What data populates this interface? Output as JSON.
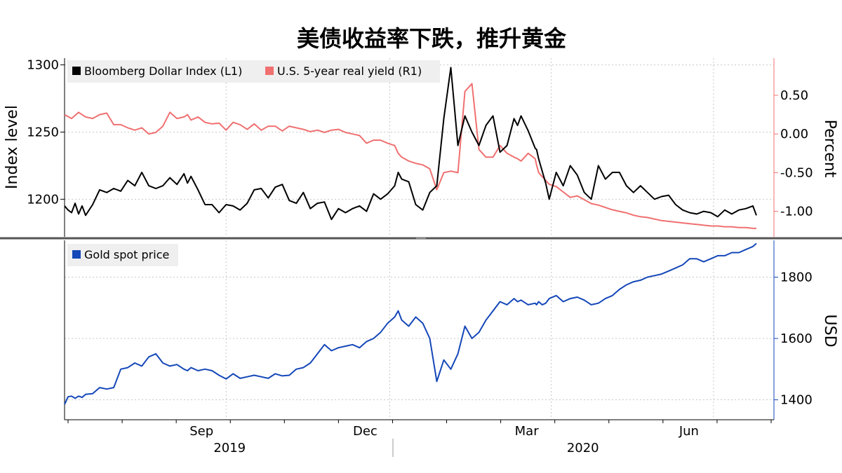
{
  "title": "美债收益率下跌，推升黄金",
  "chart_data": [
    {
      "type": "line",
      "panel": "top",
      "left_axis": {
        "label": "Index level",
        "ticks": [
          1200,
          1250,
          1300
        ],
        "ylim": [
          1172,
          1305
        ]
      },
      "right_axis": {
        "label": "Percent",
        "ticks": [
          0.5,
          0.0,
          -0.5,
          -1.0
        ],
        "tick_labels": [
          "0.50",
          "0.00",
          "-0.50",
          "-1.00"
        ],
        "ylim": [
          -1.33,
          0.98
        ]
      },
      "legend": {
        "placement": "top-left"
      },
      "grid": true,
      "series": [
        {
          "name": "Bloomberg Dollar Index (L1)",
          "axis": "left",
          "color": "#000000",
          "x": [
            0,
            5,
            10,
            15,
            20,
            25,
            30,
            40,
            50,
            60,
            70,
            80,
            90,
            100,
            110,
            120,
            130,
            140,
            150,
            160,
            170,
            175,
            180,
            190,
            200,
            210,
            220,
            230,
            240,
            250,
            260,
            270,
            280,
            290,
            300,
            310,
            320,
            330,
            340,
            350,
            360,
            370,
            380,
            390,
            400,
            410,
            420,
            430,
            440,
            450,
            460,
            470,
            475,
            480,
            490,
            500,
            510,
            520,
            530,
            540,
            550,
            560,
            570,
            580,
            590,
            600,
            610,
            620,
            630,
            640,
            645,
            650,
            660,
            670,
            672,
            675,
            680,
            685,
            690,
            700,
            710,
            720,
            730,
            740,
            750,
            760,
            770,
            780,
            790,
            800,
            810,
            820,
            830,
            840,
            850,
            860,
            870,
            880,
            890,
            900,
            910,
            920,
            930,
            940,
            950,
            960,
            970,
            980,
            985
          ],
          "y": [
            1195,
            1192,
            1190,
            1197,
            1189,
            1195,
            1188,
            1196,
            1207,
            1205,
            1208,
            1206,
            1214,
            1210,
            1220,
            1210,
            1208,
            1210,
            1216,
            1211,
            1219,
            1212,
            1217,
            1207,
            1196,
            1196,
            1190,
            1196,
            1195,
            1192,
            1197,
            1207,
            1208,
            1201,
            1209,
            1211,
            1199,
            1197,
            1205,
            1193,
            1197,
            1198,
            1185,
            1193,
            1190,
            1193,
            1195,
            1191,
            1204,
            1200,
            1204,
            1210,
            1220,
            1215,
            1213,
            1196,
            1192,
            1205,
            1210,
            1260,
            1298,
            1240,
            1262,
            1250,
            1240,
            1255,
            1262,
            1235,
            1240,
            1260,
            1255,
            1262,
            1251,
            1238,
            1237,
            1230,
            1221,
            1212,
            1200,
            1220,
            1210,
            1225,
            1218,
            1205,
            1200,
            1225,
            1215,
            1220,
            1220,
            1210,
            1205,
            1210,
            1205,
            1200,
            1202,
            1203,
            1196,
            1192,
            1190,
            1189,
            1191,
            1190,
            1187,
            1192,
            1189,
            1192,
            1193,
            1195,
            1188
          ]
        },
        {
          "name": "U.S. 5-year real yield (R1)",
          "axis": "right",
          "color": "#f07070",
          "x": [
            0,
            10,
            20,
            30,
            40,
            50,
            60,
            70,
            80,
            90,
            100,
            110,
            120,
            130,
            140,
            150,
            160,
            170,
            175,
            180,
            190,
            200,
            210,
            220,
            230,
            240,
            250,
            260,
            270,
            280,
            290,
            300,
            310,
            320,
            330,
            340,
            350,
            360,
            370,
            380,
            390,
            400,
            410,
            420,
            430,
            440,
            450,
            460,
            470,
            475,
            480,
            490,
            500,
            510,
            520,
            530,
            540,
            550,
            560,
            570,
            580,
            590,
            600,
            610,
            620,
            630,
            640,
            645,
            650,
            660,
            670,
            672,
            675,
            680,
            685,
            690,
            700,
            710,
            720,
            730,
            740,
            750,
            760,
            770,
            780,
            790,
            800,
            810,
            820,
            830,
            840,
            850,
            860,
            870,
            880,
            890,
            900,
            910,
            920,
            930,
            940,
            950,
            960,
            970,
            980,
            985
          ],
          "y": [
            0.25,
            0.2,
            0.28,
            0.22,
            0.2,
            0.25,
            0.27,
            0.12,
            0.12,
            0.08,
            0.05,
            0.08,
            0.0,
            0.02,
            0.1,
            0.28,
            0.2,
            0.22,
            0.25,
            0.18,
            0.22,
            0.15,
            0.13,
            0.14,
            0.05,
            0.15,
            0.12,
            0.06,
            0.13,
            0.05,
            0.1,
            0.1,
            0.04,
            0.1,
            0.08,
            0.06,
            0.03,
            0.05,
            0.02,
            0.05,
            0.06,
            0.02,
            0.0,
            -0.02,
            -0.12,
            -0.08,
            -0.08,
            -0.12,
            -0.15,
            -0.25,
            -0.3,
            -0.35,
            -0.38,
            -0.4,
            -0.45,
            -0.72,
            -0.5,
            -0.48,
            -0.5,
            0.55,
            0.65,
            -0.2,
            -0.3,
            -0.3,
            -0.15,
            -0.25,
            -0.3,
            -0.32,
            -0.35,
            -0.25,
            -0.32,
            -0.4,
            -0.5,
            -0.55,
            -0.6,
            -0.65,
            -0.68,
            -0.75,
            -0.82,
            -0.8,
            -0.85,
            -0.9,
            -0.92,
            -0.95,
            -0.98,
            -1.0,
            -1.02,
            -1.05,
            -1.07,
            -1.08,
            -1.1,
            -1.12,
            -1.13,
            -1.14,
            -1.15,
            -1.16,
            -1.17,
            -1.18,
            -1.19,
            -1.19,
            -1.2,
            -1.2,
            -1.21,
            -1.21,
            -1.22,
            -1.22
          ]
        }
      ]
    },
    {
      "type": "line",
      "panel": "bottom",
      "right_axis": {
        "label": "USD",
        "ticks": [
          1400,
          1600,
          1800
        ],
        "ylim": [
          1335,
          1920
        ]
      },
      "legend": {
        "placement": "top-left"
      },
      "grid": true,
      "series": [
        {
          "name": "Gold spot price",
          "axis": "right",
          "color": "#1447b8",
          "x": [
            0,
            5,
            10,
            15,
            20,
            25,
            30,
            40,
            50,
            60,
            70,
            80,
            90,
            100,
            110,
            120,
            130,
            140,
            150,
            160,
            170,
            175,
            180,
            190,
            200,
            210,
            220,
            230,
            240,
            250,
            260,
            270,
            280,
            290,
            300,
            310,
            320,
            330,
            340,
            350,
            360,
            370,
            380,
            390,
            400,
            410,
            420,
            430,
            440,
            450,
            460,
            470,
            475,
            480,
            490,
            500,
            510,
            520,
            530,
            540,
            550,
            560,
            570,
            580,
            590,
            600,
            610,
            620,
            630,
            640,
            645,
            650,
            660,
            670,
            672,
            675,
            680,
            685,
            690,
            700,
            710,
            720,
            730,
            740,
            750,
            760,
            770,
            780,
            790,
            800,
            810,
            820,
            830,
            840,
            850,
            860,
            870,
            880,
            890,
            900,
            910,
            920,
            930,
            940,
            950,
            960,
            970,
            980,
            985
          ],
          "y": [
            1385,
            1410,
            1412,
            1405,
            1412,
            1408,
            1418,
            1420,
            1440,
            1435,
            1440,
            1500,
            1505,
            1520,
            1510,
            1540,
            1550,
            1520,
            1510,
            1515,
            1500,
            1495,
            1505,
            1495,
            1500,
            1495,
            1480,
            1468,
            1485,
            1470,
            1475,
            1480,
            1475,
            1470,
            1485,
            1478,
            1480,
            1500,
            1505,
            1520,
            1550,
            1580,
            1560,
            1570,
            1575,
            1580,
            1570,
            1590,
            1600,
            1620,
            1650,
            1670,
            1690,
            1660,
            1640,
            1670,
            1650,
            1600,
            1460,
            1530,
            1500,
            1550,
            1640,
            1600,
            1620,
            1660,
            1690,
            1720,
            1710,
            1730,
            1720,
            1725,
            1710,
            1715,
            1710,
            1720,
            1710,
            1715,
            1730,
            1740,
            1720,
            1730,
            1735,
            1725,
            1710,
            1715,
            1730,
            1740,
            1760,
            1775,
            1785,
            1790,
            1800,
            1805,
            1810,
            1820,
            1830,
            1840,
            1860,
            1860,
            1850,
            1860,
            1870,
            1870,
            1880,
            1880,
            1890,
            1900,
            1910
          ]
        }
      ]
    },
    {
      "type": "line",
      "panel": "time-axis",
      "xlim": [
        0,
        1010
      ],
      "x_tick_labels": [
        {
          "x": 195,
          "label": "Sep"
        },
        {
          "x": 428,
          "label": "Dec"
        },
        {
          "x": 658,
          "label": "Mar"
        },
        {
          "x": 889,
          "label": "Jun"
        }
      ],
      "year_labels": [
        {
          "x": 235,
          "label": "2019"
        },
        {
          "x": 738,
          "label": "2020"
        }
      ]
    }
  ]
}
